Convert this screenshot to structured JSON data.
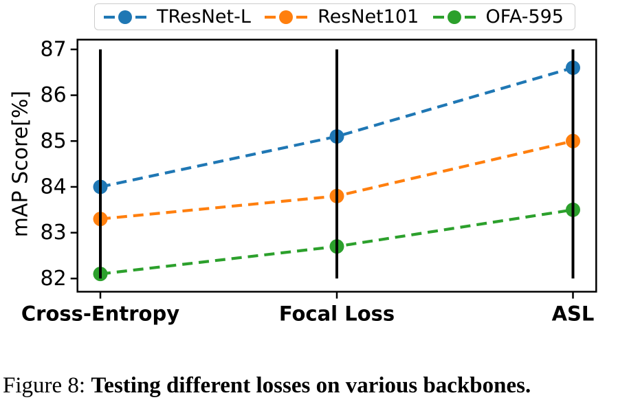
{
  "figure": {
    "caption_prefix": "Figure 8: ",
    "caption_bold": "Testing different losses on various backbones."
  },
  "chart_data": {
    "type": "line",
    "title": "",
    "xlabel": "",
    "ylabel": "mAP Score[%]",
    "categories": [
      "Cross-Entropy",
      "Focal Loss",
      "ASL"
    ],
    "y_ticks": [
      82,
      83,
      84,
      85,
      86,
      87
    ],
    "ylim": [
      81.7,
      87.2
    ],
    "grid": false,
    "line_style": "dashed",
    "marker": "circle",
    "legend_position": "top",
    "vertical_guides": {
      "color": "#000000",
      "span": [
        82,
        87
      ]
    },
    "series": [
      {
        "name": "TResNet-L",
        "color": "#1f77b4",
        "values": [
          84.0,
          85.1,
          86.6
        ]
      },
      {
        "name": "ResNet101",
        "color": "#ff7f0e",
        "values": [
          83.3,
          83.8,
          85.0
        ]
      },
      {
        "name": "OFA-595",
        "color": "#2ca02c",
        "values": [
          82.1,
          82.7,
          83.5
        ]
      }
    ]
  }
}
